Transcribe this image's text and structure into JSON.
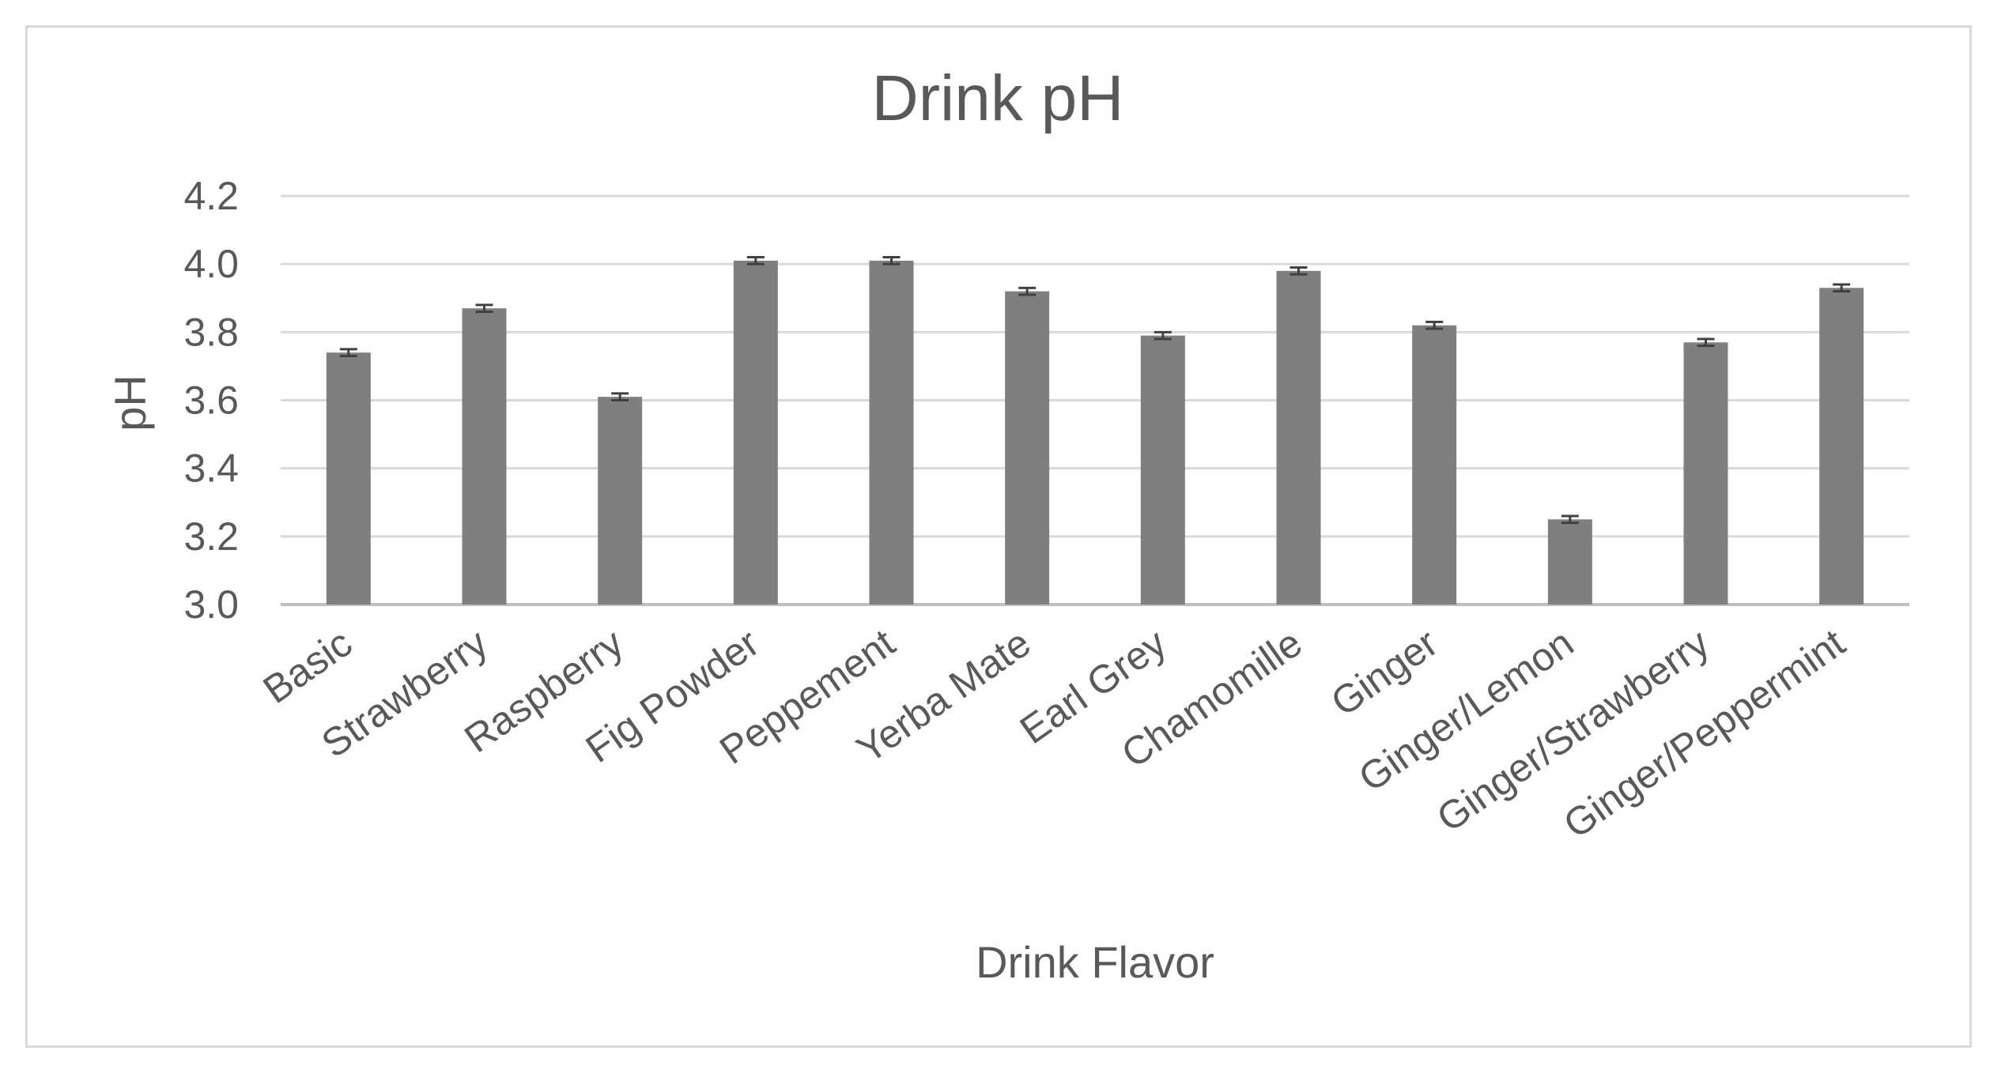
{
  "chart_data": {
    "type": "bar",
    "title": "Drink pH",
    "xlabel": "Drink Flavor",
    "ylabel": "pH",
    "ylim": [
      3.0,
      4.2
    ],
    "yticks": [
      "3.0",
      "3.2",
      "3.4",
      "3.6",
      "3.8",
      "4.0",
      "4.2"
    ],
    "grid": true,
    "legend": "none",
    "bar_color": "#7f7f7f",
    "categories": [
      "Basic",
      "Strawberry",
      "Raspberry",
      "Fig Powder",
      "Peppement",
      "Yerba Mate",
      "Earl Grey",
      "Chamomille",
      "Ginger",
      "Ginger/Lemon",
      "Ginger/Strawberry",
      "Ginger/Peppermint"
    ],
    "values": [
      3.74,
      3.87,
      3.61,
      4.01,
      4.01,
      3.92,
      3.79,
      3.98,
      3.82,
      3.25,
      3.77,
      3.93
    ],
    "errors": [
      0.01,
      0.01,
      0.01,
      0.01,
      0.01,
      0.01,
      0.01,
      0.01,
      0.01,
      0.01,
      0.01,
      0.01
    ]
  }
}
